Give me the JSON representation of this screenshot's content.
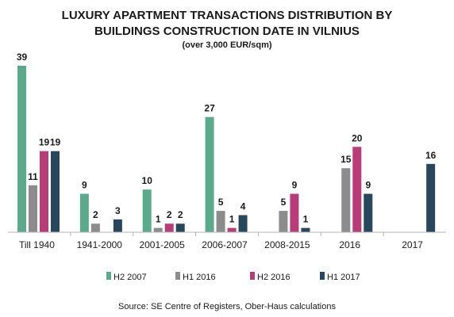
{
  "chart_data": {
    "type": "bar",
    "title_lines": [
      "LUXURY APARTMENT TRANSACTIONS DISTRIBUTION BY",
      "BUILDINGS CONSTRUCTION DATE IN VILNIUS"
    ],
    "subtitle": "(over 3,000 EUR/sqm)",
    "categories": [
      "Till 1940",
      "1941-2000",
      "2001-2005",
      "2006-2007",
      "2008-2015",
      "2016",
      "2017"
    ],
    "series": [
      {
        "name": "H2 2007",
        "color": "#5aaa8b",
        "values": [
          39,
          9,
          10,
          27,
          null,
          null,
          null
        ]
      },
      {
        "name": "H1 2016",
        "color": "#8c8c8c",
        "values": [
          11,
          2,
          1,
          5,
          5,
          15,
          null
        ]
      },
      {
        "name": "H2 2016",
        "color": "#b83c78",
        "values": [
          19,
          null,
          2,
          1,
          9,
          20,
          null
        ]
      },
      {
        "name": "H1 2017",
        "color": "#28475c",
        "values": [
          19,
          3,
          2,
          4,
          1,
          9,
          16
        ]
      }
    ],
    "ylim": [
      0,
      40
    ],
    "grid": false,
    "legend_position": "bottom",
    "source": "Source: SE Centre of Registers, Ober-Haus calculations"
  }
}
